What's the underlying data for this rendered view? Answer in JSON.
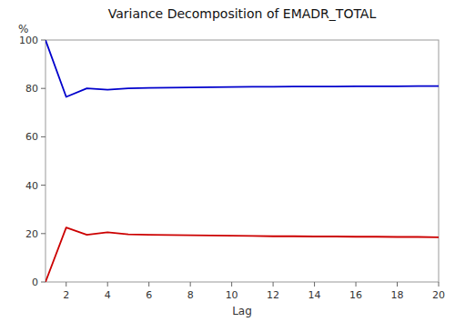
{
  "chart_data": {
    "type": "line",
    "title": "Variance Decomposition of EMADR_TOTAL",
    "xlabel": "Lag",
    "ylabel": "%",
    "x": [
      1,
      2,
      3,
      4,
      5,
      6,
      7,
      8,
      9,
      10,
      11,
      12,
      13,
      14,
      15,
      16,
      17,
      18,
      19,
      20
    ],
    "series": [
      {
        "color": "#0000cc",
        "values": [
          100.0,
          76.5,
          80.0,
          79.5,
          80.0,
          80.2,
          80.3,
          80.4,
          80.5,
          80.6,
          80.7,
          80.7,
          80.8,
          80.8,
          80.8,
          80.9,
          80.9,
          80.9,
          81.0,
          81.0
        ]
      },
      {
        "color": "#cc0000",
        "values": [
          0.0,
          22.5,
          19.5,
          20.5,
          19.7,
          19.5,
          19.4,
          19.3,
          19.2,
          19.1,
          19.0,
          18.9,
          18.9,
          18.8,
          18.8,
          18.7,
          18.7,
          18.6,
          18.6,
          18.5
        ]
      }
    ],
    "xlim": [
      1,
      20
    ],
    "ylim": [
      0,
      100
    ],
    "xticks": [
      2,
      4,
      6,
      8,
      10,
      12,
      14,
      16,
      18,
      20
    ],
    "yticks": [
      0,
      20,
      40,
      60,
      80,
      100
    ],
    "grid": false
  }
}
